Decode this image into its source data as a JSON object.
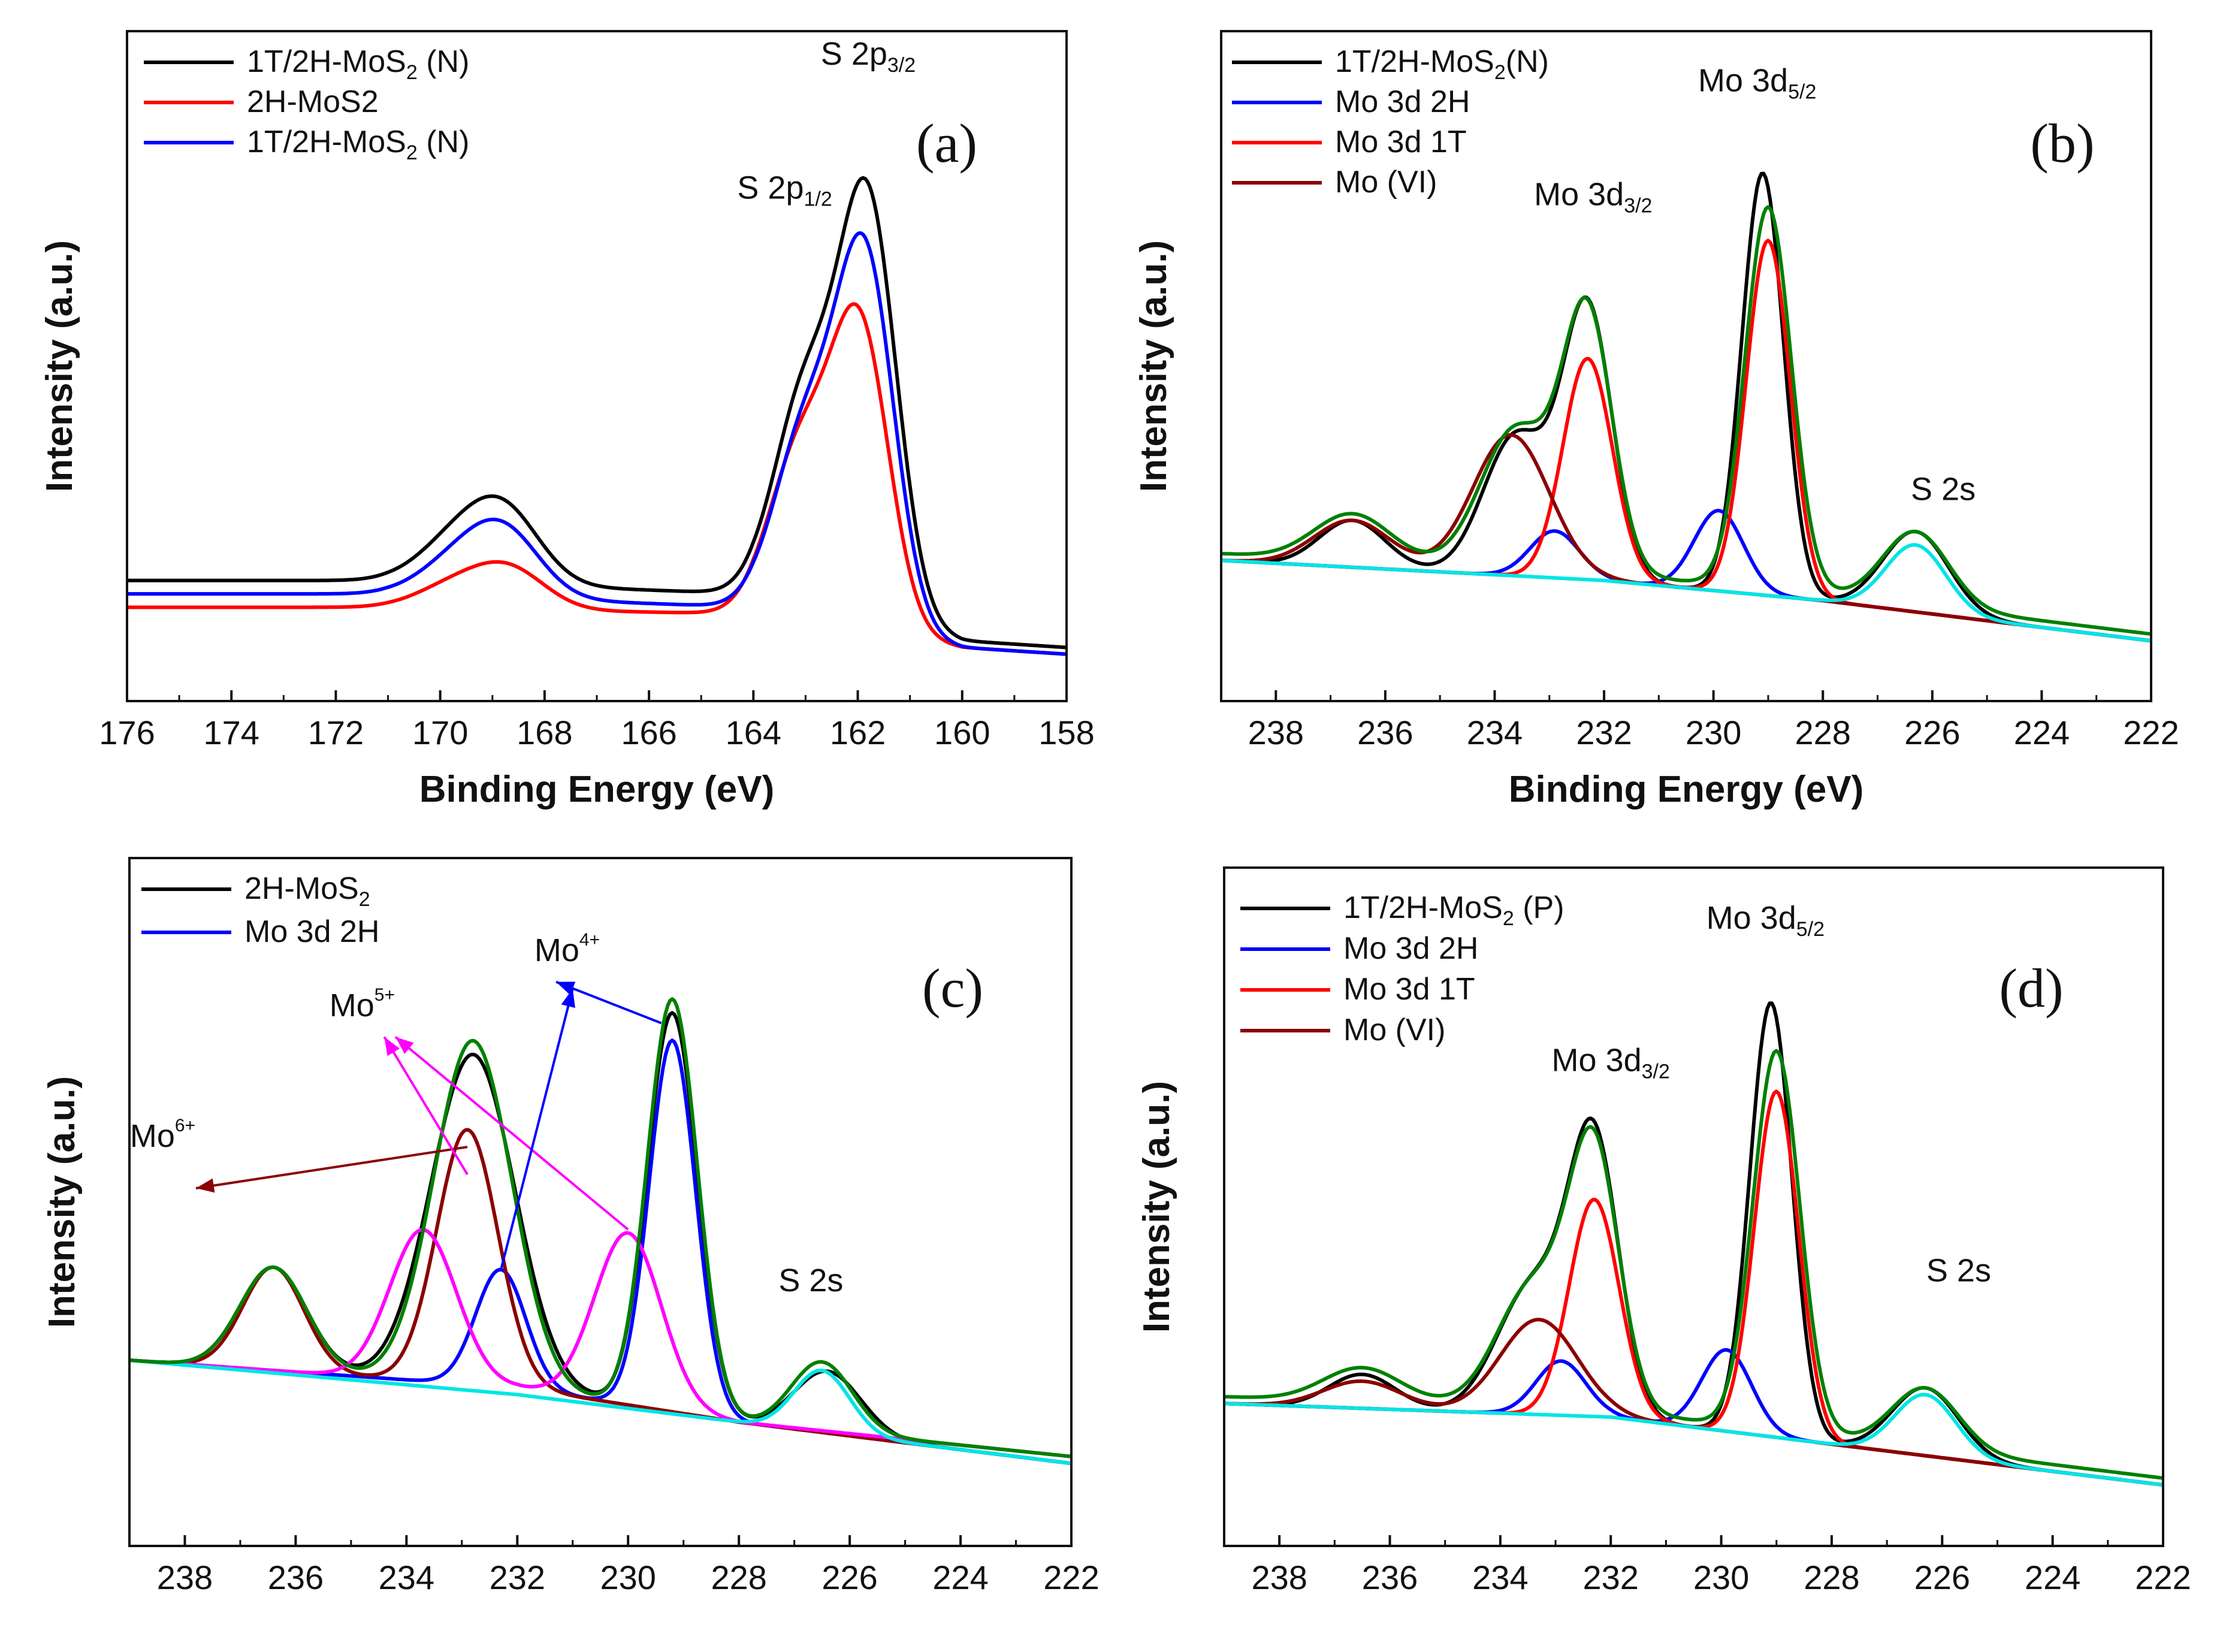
{
  "chart_data": [
    {
      "id": "a",
      "type": "line",
      "panel_label": "(a)",
      "xlabel": "Binding Energy (eV)",
      "ylabel": "Intensity (a.u.)",
      "xlim": [
        176,
        158
      ],
      "ylim": [
        0,
        100
      ],
      "x_ticks": [
        176,
        174,
        172,
        170,
        168,
        166,
        164,
        162,
        160,
        158
      ],
      "legend": {
        "position": "top-left"
      },
      "series": [
        {
          "name": "1T/2H-MoS",
          "name_sub": "2",
          "name_tail": " (N)",
          "color": "#000000",
          "baseline": [
            [
              176,
              18
            ],
            [
              171,
              18
            ],
            [
              164,
              16
            ],
            [
              160,
              9
            ],
            [
              158,
              8
            ]
          ],
          "peaks": [
            [
              169.8,
              5,
              0.7
            ],
            [
              168.8,
              11,
              0.7
            ],
            [
              163.0,
              31,
              0.6
            ],
            [
              161.8,
              61,
              0.55
            ]
          ]
        },
        {
          "name": "2H-MoS2",
          "color": "#ff0000",
          "baseline": [
            [
              176,
              14
            ],
            [
              171,
              14
            ],
            [
              164,
              13
            ],
            [
              160,
              8
            ],
            [
              158,
              7
            ]
          ],
          "peaks": [
            [
              169.8,
              3,
              0.7
            ],
            [
              168.7,
              6,
              0.7
            ],
            [
              163.1,
              25,
              0.6
            ],
            [
              161.95,
              44,
              0.55
            ]
          ]
        },
        {
          "name": "1T/2H-MoS",
          "name_sub": "2",
          "name_tail": " (N)",
          "color": "#0000ff",
          "baseline": [
            [
              176,
              16
            ],
            [
              171,
              16
            ],
            [
              164,
              14
            ],
            [
              160,
              8
            ],
            [
              158,
              7
            ]
          ],
          "peaks": [
            [
              169.8,
              4,
              0.7
            ],
            [
              168.8,
              10,
              0.7
            ],
            [
              163.0,
              27,
              0.6
            ],
            [
              161.85,
              54,
              0.55
            ]
          ]
        }
      ],
      "annotations": [
        {
          "base": "S 2p",
          "sub": "1/2",
          "x": 163.4,
          "y": 75
        },
        {
          "base": "S 2p",
          "sub": "3/2",
          "x": 161.8,
          "y": 95
        }
      ]
    },
    {
      "id": "b",
      "type": "line",
      "panel_label": "(b)",
      "xlabel": "Binding Energy (eV)",
      "ylabel": "Intensity (a.u.)",
      "xlim": [
        239,
        222
      ],
      "ylim": [
        0,
        100
      ],
      "x_ticks": [
        238,
        236,
        234,
        232,
        230,
        228,
        226,
        224,
        222
      ],
      "legend": {
        "position": "top-left"
      },
      "series": [
        {
          "name": "1T/2H-MoS",
          "name_sub": "2",
          "name_tail": "(N)",
          "color": "#000000",
          "baseline": [
            [
              239,
              21
            ],
            [
              232,
              18
            ],
            [
              228,
              15
            ],
            [
              222,
              9
            ]
          ],
          "peaks": [
            [
              236.6,
              7,
              0.6
            ],
            [
              233.6,
              21,
              0.6
            ],
            [
              232.3,
              40,
              0.45
            ],
            [
              229.1,
              63,
              0.38
            ],
            [
              226.3,
              12,
              0.6
            ]
          ]
        },
        {
          "name": "Mo 3d 2H",
          "color": "#0000ff",
          "baseline": [
            [
              239,
              21
            ],
            [
              232,
              18
            ],
            [
              228,
              15
            ],
            [
              222,
              9
            ]
          ],
          "peaks": [
            [
              232.9,
              7,
              0.45
            ],
            [
              229.9,
              12,
              0.45
            ]
          ]
        },
        {
          "name": "Mo 3d 1T",
          "color": "#ff0000",
          "baseline": [
            [
              239,
              21
            ],
            [
              232,
              18
            ],
            [
              228,
              15
            ],
            [
              222,
              9
            ]
          ],
          "peaks": [
            [
              232.3,
              33,
              0.45
            ],
            [
              229.0,
              53,
              0.4
            ]
          ]
        },
        {
          "name": "Mo (VI)",
          "color": "#8b0000",
          "baseline": [
            [
              239,
              21
            ],
            [
              232,
              18
            ],
            [
              228,
              15
            ],
            [
              222,
              9
            ]
          ],
          "peaks": [
            [
              236.6,
              7,
              0.7
            ],
            [
              233.7,
              21,
              0.7
            ]
          ]
        },
        {
          "name": "envelope",
          "color": "#008000",
          "in_legend": false,
          "baseline": [
            [
              239,
              22
            ],
            [
              232,
              19
            ],
            [
              228,
              16
            ],
            [
              222,
              10
            ]
          ],
          "peaks": [
            [
              236.6,
              7,
              0.7
            ],
            [
              233.6,
              21,
              0.65
            ],
            [
              232.3,
              38,
              0.45
            ],
            [
              229.0,
              57,
              0.42
            ],
            [
              226.3,
              11,
              0.6
            ]
          ]
        },
        {
          "name": "S 2s",
          "color": "#00e5e5",
          "in_legend": false,
          "baseline": [
            [
              239,
              21
            ],
            [
              232,
              18
            ],
            [
              228,
              15
            ],
            [
              222,
              9
            ]
          ],
          "peaks": [
            [
              226.3,
              10,
              0.55
            ]
          ]
        }
      ],
      "annotations": [
        {
          "base": "Mo 3d",
          "sub": "3/2",
          "x": 232.2,
          "y": 74
        },
        {
          "base": "Mo 3d",
          "sub": "5/2",
          "x": 229.2,
          "y": 91
        },
        {
          "base": "S 2s",
          "x": 225.8,
          "y": 30
        }
      ]
    },
    {
      "id": "c",
      "type": "line",
      "panel_label": "(c)",
      "xlabel": "",
      "ylabel": "Intensity (a.u.)",
      "xlim": [
        239,
        222
      ],
      "ylim": [
        0,
        100
      ],
      "x_ticks": [
        238,
        236,
        234,
        232,
        230,
        228,
        226,
        224,
        222
      ],
      "legend": {
        "position": "top-left"
      },
      "series": [
        {
          "name": "2H-MoS",
          "name_sub": "2",
          "color": "#000000",
          "baseline": [
            [
              239,
              27
            ],
            [
              232,
              23
            ],
            [
              228,
              18
            ],
            [
              222,
              12
            ]
          ],
          "peaks": [
            [
              236.4,
              15,
              0.6
            ],
            [
              232.8,
              48,
              0.75
            ],
            [
              229.2,
              58,
              0.45
            ],
            [
              226.4,
              9,
              0.6
            ]
          ]
        },
        {
          "name": "Mo 3d 2H",
          "color": "#0000ff",
          "baseline": [
            [
              239,
              27
            ],
            [
              232,
              23
            ],
            [
              228,
              18
            ],
            [
              222,
              12
            ]
          ],
          "peaks": [
            [
              232.3,
              17,
              0.45
            ],
            [
              229.2,
              54,
              0.42
            ]
          ]
        },
        {
          "name": "Mo6+",
          "color": "#8b0000",
          "in_legend": false,
          "baseline": [
            [
              239,
              27
            ],
            [
              232,
              23
            ],
            [
              228,
              18
            ],
            [
              222,
              12
            ]
          ],
          "peaks": [
            [
              236.4,
              15,
              0.55
            ],
            [
              232.9,
              37,
              0.55
            ]
          ]
        },
        {
          "name": "Mo5+",
          "color": "#ff00ff",
          "in_legend": false,
          "baseline": [
            [
              239,
              27
            ],
            [
              232,
              23
            ],
            [
              228,
              18
            ],
            [
              222,
              13
            ]
          ],
          "peaks": [
            [
              233.7,
              22,
              0.6
            ],
            [
              230.0,
              25,
              0.6
            ]
          ]
        },
        {
          "name": "envelope",
          "color": "#008000",
          "in_legend": false,
          "baseline": [
            [
              239,
              27
            ],
            [
              232,
              23
            ],
            [
              228,
              18
            ],
            [
              222,
              13
            ]
          ],
          "peaks": [
            [
              236.4,
              15,
              0.6
            ],
            [
              232.8,
              50,
              0.7
            ],
            [
              229.2,
              60,
              0.45
            ],
            [
              226.5,
              10,
              0.55
            ]
          ]
        },
        {
          "name": "S 2s",
          "color": "#00e5e5",
          "in_legend": false,
          "baseline": [
            [
              239,
              27
            ],
            [
              232,
              22
            ],
            [
              228,
              18
            ],
            [
              222,
              12
            ]
          ],
          "peaks": [
            [
              226.5,
              9,
              0.5
            ]
          ]
        }
      ],
      "annotations": [
        {
          "base": "Mo",
          "sup": "6+",
          "x": 238.4,
          "y": 58
        },
        {
          "base": "Mo",
          "sup": "5+",
          "x": 234.8,
          "y": 77
        },
        {
          "base": "Mo",
          "sup": "4+",
          "x": 231.1,
          "y": 85
        },
        {
          "base": "S 2s",
          "x": 226.7,
          "y": 37
        }
      ],
      "arrows": [
        {
          "color": "#8b0000",
          "from": [
            232.9,
            58
          ],
          "to": [
            237.8,
            52
          ]
        },
        {
          "color": "#ff00ff",
          "from": [
            232.9,
            54
          ],
          "to": [
            234.4,
            74
          ]
        },
        {
          "color": "#ff00ff",
          "from": [
            230.0,
            46
          ],
          "to": [
            234.2,
            74
          ]
        },
        {
          "color": "#0000ff",
          "from": [
            232.3,
            40
          ],
          "to": [
            231.0,
            81
          ]
        },
        {
          "color": "#0000ff",
          "from": [
            229.4,
            76
          ],
          "to": [
            231.3,
            82
          ]
        }
      ]
    },
    {
      "id": "d",
      "type": "line",
      "panel_label": "(d)",
      "xlabel": "",
      "ylabel": "Intensity (a.u.)",
      "xlim": [
        239,
        222
      ],
      "ylim": [
        0,
        100
      ],
      "x_ticks": [
        238,
        236,
        234,
        232,
        230,
        228,
        226,
        224,
        222
      ],
      "legend": {
        "position": "top-left"
      },
      "series": [
        {
          "name": "1T/2H-MoS",
          "name_sub": "2",
          "name_tail": " (P)",
          "color": "#000000",
          "baseline": [
            [
              239,
              21
            ],
            [
              232,
              19
            ],
            [
              228,
              15
            ],
            [
              222,
              9
            ]
          ],
          "peaks": [
            [
              236.5,
              5,
              0.6
            ],
            [
              233.4,
              19,
              0.65
            ],
            [
              232.3,
              39,
              0.45
            ],
            [
              229.1,
              64,
              0.38
            ],
            [
              226.3,
              10,
              0.6
            ]
          ]
        },
        {
          "name": "Mo 3d 2H",
          "color": "#0000ff",
          "baseline": [
            [
              239,
              21
            ],
            [
              232,
              19
            ],
            [
              228,
              15
            ],
            [
              222,
              9
            ]
          ],
          "peaks": [
            [
              232.9,
              8,
              0.45
            ],
            [
              229.9,
              12,
              0.45
            ]
          ]
        },
        {
          "name": "Mo 3d 1T",
          "color": "#ff0000",
          "baseline": [
            [
              239,
              21
            ],
            [
              232,
              19
            ],
            [
              228,
              15
            ],
            [
              222,
              9
            ]
          ],
          "peaks": [
            [
              232.3,
              32,
              0.45
            ],
            [
              229.0,
              51,
              0.4
            ]
          ]
        },
        {
          "name": "Mo (VI)",
          "color": "#8b0000",
          "baseline": [
            [
              239,
              21
            ],
            [
              232,
              19
            ],
            [
              228,
              15
            ],
            [
              222,
              9
            ]
          ],
          "peaks": [
            [
              236.5,
              4,
              0.7
            ],
            [
              233.3,
              14,
              0.7
            ]
          ]
        },
        {
          "name": "envelope",
          "color": "#008000",
          "in_legend": false,
          "baseline": [
            [
              239,
              22
            ],
            [
              232,
              20
            ],
            [
              228,
              16
            ],
            [
              222,
              10
            ]
          ],
          "peaks": [
            [
              236.5,
              5,
              0.7
            ],
            [
              233.4,
              18,
              0.65
            ],
            [
              232.3,
              37,
              0.45
            ],
            [
              229.0,
              56,
              0.42
            ],
            [
              226.3,
              9,
              0.6
            ]
          ]
        },
        {
          "name": "S 2s",
          "color": "#00e5e5",
          "in_legend": false,
          "baseline": [
            [
              239,
              21
            ],
            [
              232,
              19
            ],
            [
              228,
              15
            ],
            [
              222,
              9
            ]
          ],
          "peaks": [
            [
              226.3,
              9,
              0.55
            ]
          ]
        }
      ],
      "annotations": [
        {
          "base": "Mo 3d",
          "sub": "3/2",
          "x": 232.0,
          "y": 70
        },
        {
          "base": "Mo 3d",
          "sub": "5/2",
          "x": 229.2,
          "y": 91
        },
        {
          "base": "S 2s",
          "x": 225.7,
          "y": 39
        }
      ]
    }
  ]
}
